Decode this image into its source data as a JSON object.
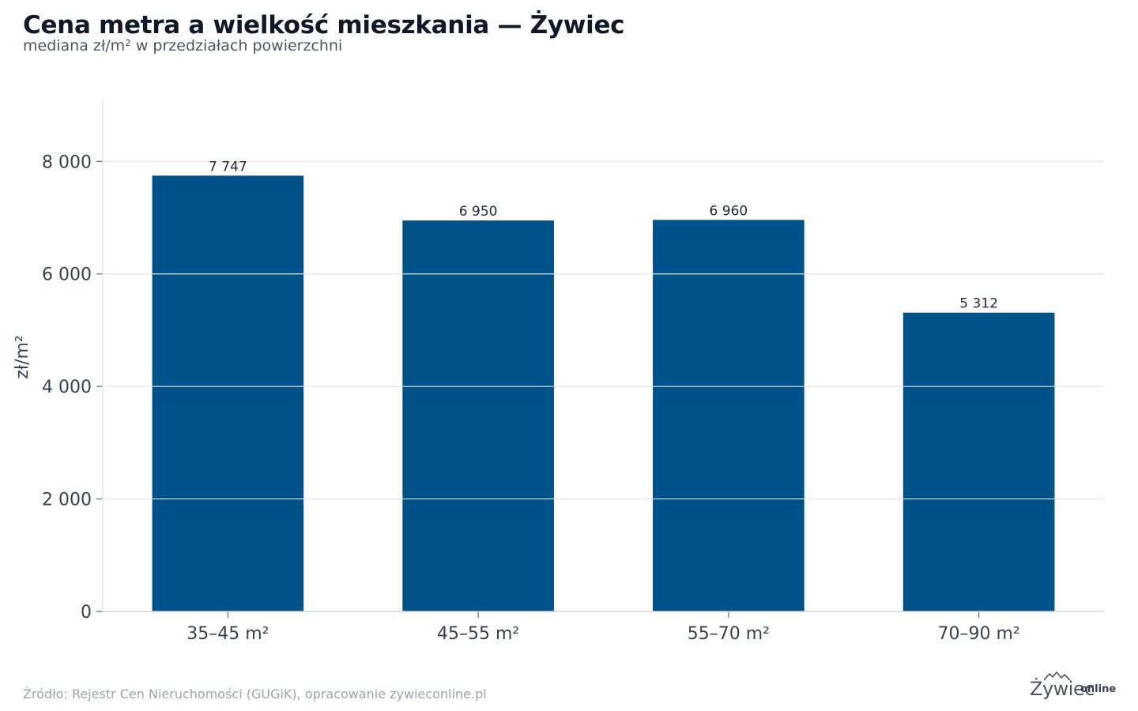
{
  "chart_data": {
    "type": "bar",
    "title": "Cena metra a wielkość mieszkania — Żywiec",
    "subtitle": "mediana zł/m² w przedziałach powierzchni",
    "ylabel": "zł/m²",
    "xlabel": "",
    "categories": [
      "35–45 m²",
      "45–55 m²",
      "55–70 m²",
      "70–90 m²"
    ],
    "values": [
      7747,
      6950,
      6960,
      5312
    ],
    "value_labels": [
      "7 747",
      "6 950",
      "6 960",
      "5 312"
    ],
    "yticks": [
      0,
      2000,
      4000,
      6000,
      8000
    ],
    "ytick_labels": [
      "0",
      "2 000",
      "4 000",
      "6 000",
      "8 000"
    ],
    "ylim": [
      0,
      9100
    ],
    "grid": true,
    "bar_color": "#00538a"
  },
  "footer": {
    "source": "Źródło: Rejestr Cen Nieruchomości (GUGiK), opracowanie zywieconline.pl",
    "logo_main": "Żywiec",
    "logo_sub": "online"
  }
}
